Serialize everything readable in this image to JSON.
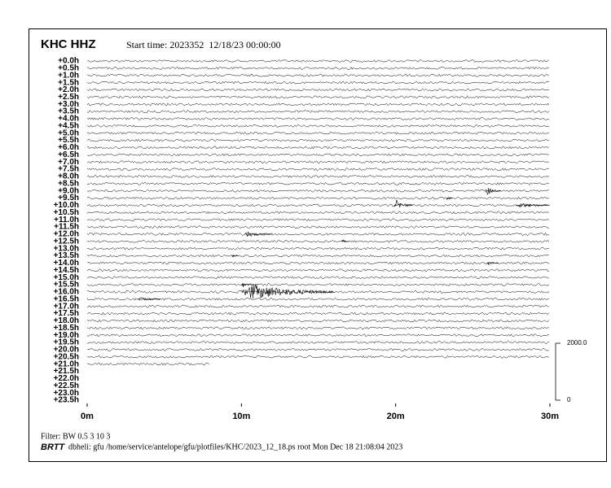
{
  "chart_data": {
    "type": "helicorder",
    "title": "KHC HHZ",
    "subtitle": "Start time: 2023352  12/18/23 00:00:00",
    "categories": [
      "+0.0h",
      "+0.5h",
      "+1.0h",
      "+1.5h",
      "+2.0h",
      "+2.5h",
      "+3.0h",
      "+3.5h",
      "+4.0h",
      "+4.5h",
      "+5.0h",
      "+5.5h",
      "+6.0h",
      "+6.5h",
      "+7.0h",
      "+7.5h",
      "+8.0h",
      "+8.5h",
      "+9.0h",
      "+9.5h",
      "+10.0h",
      "+10.5h",
      "+11.0h",
      "+11.5h",
      "+12.0h",
      "+12.5h",
      "+13.0h",
      "+13.5h",
      "+14.0h",
      "+14.5h",
      "+15.0h",
      "+15.5h",
      "+16.0h",
      "+16.5h",
      "+17.0h",
      "+17.5h",
      "+18.0h",
      "+18.5h",
      "+19.0h",
      "+19.5h",
      "+20.0h",
      "+20.5h",
      "+21.0h",
      "+21.5h",
      "+22.0h",
      "+22.5h",
      "+23.0h",
      "+23.5h"
    ],
    "xlim": [
      0,
      30
    ],
    "xticks": [
      {
        "value": 0,
        "label": "0m"
      },
      {
        "value": 10,
        "label": "10m"
      },
      {
        "value": 20,
        "label": "20m"
      },
      {
        "value": 30,
        "label": "30m"
      }
    ],
    "scale_lim": [
      0,
      2000
    ],
    "scale_ticks": [
      {
        "value": 2000,
        "label": "2000.0"
      },
      0
    ],
    "noise_amplitude": 40,
    "last_trace_row": 42,
    "last_trace_end": 8,
    "events": [
      {
        "row": 18,
        "start": 25.8,
        "duration": 1.0,
        "amplitude": 200
      },
      {
        "row": 19,
        "start": 23.3,
        "duration": 0.4,
        "amplitude": 90
      },
      {
        "row": 20,
        "start": 19.9,
        "duration": 1.2,
        "amplitude": 250
      },
      {
        "row": 20,
        "start": 27.8,
        "duration": 2.2,
        "amplitude": 110
      },
      {
        "row": 24,
        "start": 10.2,
        "duration": 1.8,
        "amplitude": 130
      },
      {
        "row": 25,
        "start": 16.5,
        "duration": 0.5,
        "amplitude": 90
      },
      {
        "row": 27,
        "start": 9.4,
        "duration": 0.4,
        "amplitude": 80
      },
      {
        "row": 28,
        "start": 25.9,
        "duration": 0.8,
        "amplitude": 80
      },
      {
        "row": 31,
        "start": 10.0,
        "duration": 0.8,
        "amplitude": 120
      },
      {
        "row": 32,
        "start": 10.0,
        "duration": 6.0,
        "amplitude": 380
      },
      {
        "row": 33,
        "start": 3.3,
        "duration": 1.5,
        "amplitude": 80
      }
    ],
    "filter_note": "Filter: BW 0.5 3 10 3",
    "footer_brand": "BRTT",
    "footer_note": "dbheli: gfu /home/service/antelope/gfu/plotfiles/KHC/2023_12_18.ps root Mon Dec 18 21:08:04 2023"
  }
}
